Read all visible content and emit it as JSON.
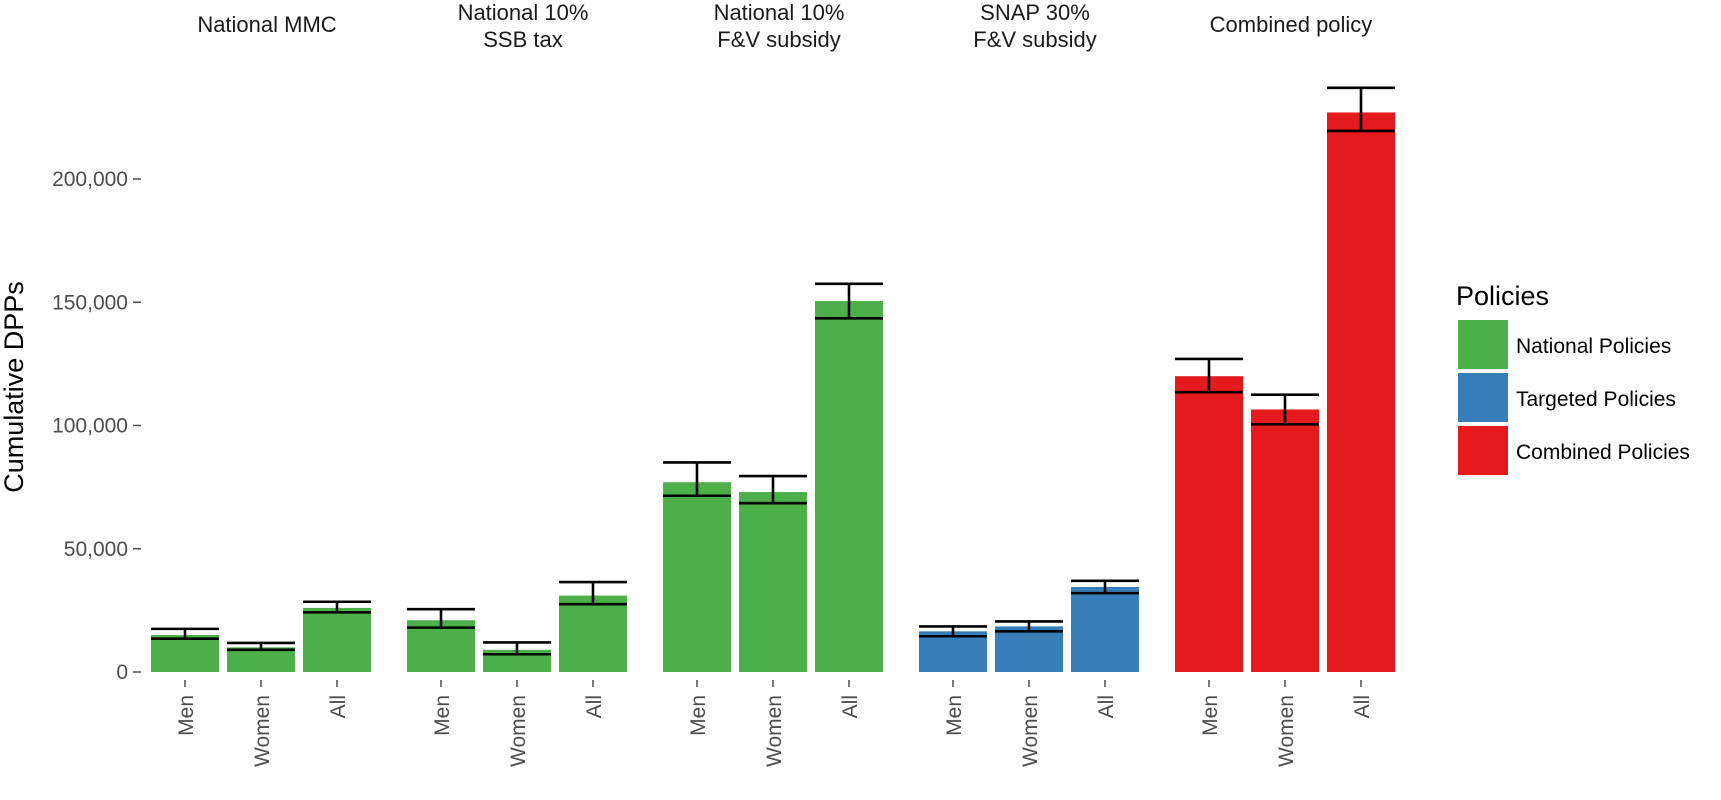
{
  "chart_data": {
    "type": "bar",
    "ylabel": "Cumulative DPPs",
    "ylim": [
      0,
      240000
    ],
    "yticks": [
      0,
      50000,
      100000,
      150000,
      200000
    ],
    "ytick_labels": [
      "0",
      "50,000",
      "100,000",
      "150,000",
      "200,000"
    ],
    "categories": [
      "Men",
      "Women",
      "All"
    ],
    "legend": {
      "title": "Policies",
      "position": "right",
      "entries": [
        {
          "label": "National Policies",
          "color": "#4daf4a"
        },
        {
          "label": "Targeted Policies",
          "color": "#377eb8"
        },
        {
          "label": "Combined Policies",
          "color": "#e41a1c"
        }
      ]
    },
    "panels": [
      {
        "title": [
          "National MMC"
        ],
        "group": 0,
        "values": [
          15000,
          10000,
          26000
        ],
        "err_low": [
          13500,
          9000,
          24200
        ],
        "err_high": [
          17500,
          11800,
          28500
        ]
      },
      {
        "title": [
          "National 10%",
          "SSB tax"
        ],
        "group": 0,
        "values": [
          21000,
          9000,
          31000
        ],
        "err_low": [
          18000,
          7200,
          27500
        ],
        "err_high": [
          25500,
          12000,
          36500
        ]
      },
      {
        "title": [
          "National 10%",
          "F&V subsidy"
        ],
        "group": 0,
        "values": [
          77000,
          73000,
          150500
        ],
        "err_low": [
          71500,
          68500,
          143500
        ],
        "err_high": [
          85000,
          79500,
          157500
        ]
      },
      {
        "title": [
          "SNAP 30%",
          "F&V subsidy"
        ],
        "group": 1,
        "values": [
          16500,
          18500,
          34500
        ],
        "err_low": [
          14500,
          16500,
          32000
        ],
        "err_high": [
          18500,
          20500,
          37000
        ]
      },
      {
        "title": [
          "Combined policy"
        ],
        "group": 2,
        "values": [
          120000,
          106500,
          227000
        ],
        "err_low": [
          113500,
          100500,
          219500
        ],
        "err_high": [
          127000,
          112500,
          237000
        ]
      }
    ]
  }
}
